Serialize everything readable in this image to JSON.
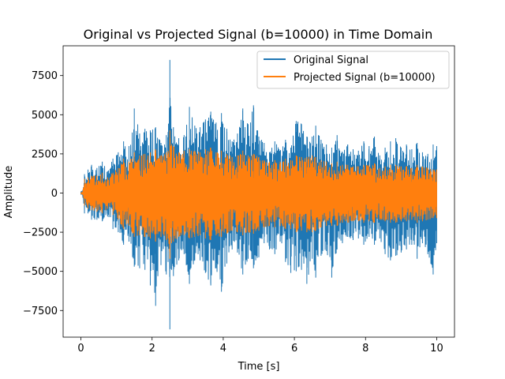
{
  "chart_data": {
    "type": "line",
    "title": "Original vs Projected Signal (b=10000) in Time Domain",
    "xlabel": "Time [s]",
    "ylabel": "Amplitude",
    "xlim": [
      -0.5,
      10.5
    ],
    "ylim": [
      -9200,
      9400
    ],
    "xticks": [
      0,
      2,
      4,
      6,
      8,
      10
    ],
    "xtick_labels": [
      "0",
      "2",
      "4",
      "6",
      "8",
      "10"
    ],
    "yticks": [
      -7500,
      -5000,
      -2500,
      0,
      2500,
      5000,
      7500
    ],
    "ytick_labels": [
      "−7500",
      "−5000",
      "−2500",
      "0",
      "2500",
      "5000",
      "7500"
    ],
    "grid": false,
    "legend_position": "upper right",
    "series": [
      {
        "name": "Original Signal",
        "color": "#1f77b4",
        "x": [
          0.0,
          0.05,
          0.1,
          0.15,
          0.2,
          0.3,
          0.45,
          0.6,
          0.75,
          0.9,
          1.05,
          1.2,
          1.35,
          1.5,
          1.65,
          1.8,
          1.95,
          2.1,
          2.25,
          2.4,
          2.45,
          2.5,
          2.55,
          2.6,
          2.75,
          2.9,
          3.05,
          3.2,
          3.35,
          3.5,
          3.65,
          3.8,
          3.95,
          4.1,
          4.25,
          4.4,
          4.55,
          4.7,
          4.85,
          5.0,
          5.15,
          5.3,
          5.45,
          5.6,
          5.75,
          5.9,
          6.05,
          6.2,
          6.35,
          6.5,
          6.6,
          6.75,
          6.9,
          7.05,
          7.2,
          7.35,
          7.5,
          7.65,
          7.8,
          7.95,
          8.1,
          8.25,
          8.4,
          8.55,
          8.7,
          8.85,
          9.0,
          9.15,
          9.3,
          9.45,
          9.6,
          9.75,
          9.9,
          10.0
        ],
        "y_max": [
          100,
          200,
          1200,
          900,
          1500,
          1800,
          1600,
          2000,
          1400,
          2200,
          2600,
          3300,
          3000,
          5400,
          3800,
          4100,
          4000,
          4200,
          3200,
          3700,
          3900,
          8500,
          4100,
          4200,
          3500,
          3700,
          5500,
          4300,
          4200,
          4700,
          5200,
          4500,
          5100,
          4100,
          3300,
          3800,
          5400,
          4400,
          5600,
          3600,
          3200,
          2600,
          3300,
          2700,
          3400,
          2900,
          4600,
          4400,
          3600,
          3600,
          4300,
          3400,
          3100,
          2900,
          3700,
          2600,
          3100,
          2800,
          2700,
          3300,
          3000,
          3600,
          2400,
          2900,
          3300,
          3500,
          2900,
          3100,
          2800,
          3200,
          2600,
          2500,
          3100,
          3000
        ],
        "y_min": [
          -100,
          -200,
          -1300,
          -900,
          -1300,
          -1700,
          -1700,
          -1800,
          -1500,
          -2300,
          -2500,
          -3300,
          -3100,
          -4700,
          -4800,
          -4900,
          -5900,
          -7200,
          -4600,
          -5200,
          -4400,
          -8700,
          -4900,
          -5300,
          -4300,
          -3900,
          -5800,
          -4300,
          -4300,
          -5100,
          -5900,
          -4800,
          -6300,
          -4500,
          -3600,
          -3800,
          -5200,
          -4200,
          -4800,
          -4100,
          -3200,
          -3600,
          -3900,
          -3100,
          -4400,
          -5100,
          -5000,
          -4900,
          -5800,
          -4200,
          -5400,
          -4000,
          -3700,
          -5400,
          -3600,
          -3200,
          -2800,
          -3000,
          -2900,
          -3300,
          -2800,
          -3300,
          -2900,
          -3900,
          -4300,
          -4000,
          -3800,
          -3600,
          -3300,
          -4200,
          -3200,
          -3900,
          -5200,
          -3200
        ]
      },
      {
        "name": "Projected Signal (b=10000)",
        "color": "#ff7f0e",
        "x": [
          0.0,
          0.05,
          0.1,
          0.15,
          0.2,
          0.3,
          0.45,
          0.6,
          0.75,
          0.9,
          1.05,
          1.2,
          1.35,
          1.5,
          1.65,
          1.8,
          1.95,
          2.1,
          2.25,
          2.4,
          2.45,
          2.5,
          2.55,
          2.6,
          2.75,
          2.9,
          3.05,
          3.2,
          3.35,
          3.5,
          3.65,
          3.8,
          3.95,
          4.1,
          4.25,
          4.4,
          4.55,
          4.7,
          4.85,
          5.0,
          5.15,
          5.3,
          5.45,
          5.6,
          5.75,
          5.9,
          6.05,
          6.2,
          6.35,
          6.5,
          6.6,
          6.75,
          6.9,
          7.05,
          7.2,
          7.35,
          7.5,
          7.65,
          7.8,
          7.95,
          8.1,
          8.25,
          8.4,
          8.55,
          8.7,
          8.85,
          9.0,
          9.15,
          9.3,
          9.45,
          9.6,
          9.75,
          9.9,
          10.0
        ],
        "y_max": [
          50,
          100,
          900,
          600,
          1000,
          1100,
          1100,
          1300,
          1000,
          1300,
          1600,
          2200,
          2000,
          2600,
          2400,
          2500,
          2600,
          2800,
          2400,
          2600,
          2700,
          4000,
          3100,
          3000,
          2600,
          2700,
          2800,
          2700,
          2600,
          2800,
          2900,
          2600,
          2700,
          2500,
          2300,
          2400,
          2700,
          2400,
          2500,
          2300,
          2100,
          2000,
          2100,
          2000,
          2200,
          2100,
          2400,
          2300,
          2300,
          2400,
          2300,
          2100,
          2000,
          1900,
          2000,
          1800,
          1800,
          1700,
          1700,
          1800,
          1800,
          1900,
          1600,
          1700,
          1800,
          1800,
          1700,
          1700,
          1600,
          1800,
          1700,
          1600,
          1500,
          1500
        ],
        "y_min": [
          -50,
          -100,
          -800,
          -600,
          -1000,
          -1100,
          -1200,
          -1300,
          -1000,
          -1400,
          -1700,
          -2300,
          -2100,
          -2800,
          -2700,
          -2800,
          -2900,
          -3100,
          -2800,
          -3000,
          -2900,
          -4200,
          -3200,
          -3100,
          -2800,
          -2700,
          -2900,
          -2800,
          -2700,
          -2900,
          -3000,
          -2700,
          -2800,
          -2600,
          -2400,
          -2500,
          -2700,
          -2500,
          -2600,
          -2400,
          -2200,
          -2100,
          -2200,
          -2100,
          -2300,
          -2300,
          -2500,
          -2400,
          -2500,
          -2500,
          -2400,
          -2200,
          -2100,
          -2100,
          -2100,
          -1900,
          -1900,
          -1800,
          -1800,
          -1900,
          -1800,
          -1900,
          -1700,
          -1800,
          -1900,
          -1900,
          -1800,
          -1800,
          -1700,
          -1900,
          -1800,
          -1700,
          -1600,
          -1600
        ]
      }
    ]
  }
}
